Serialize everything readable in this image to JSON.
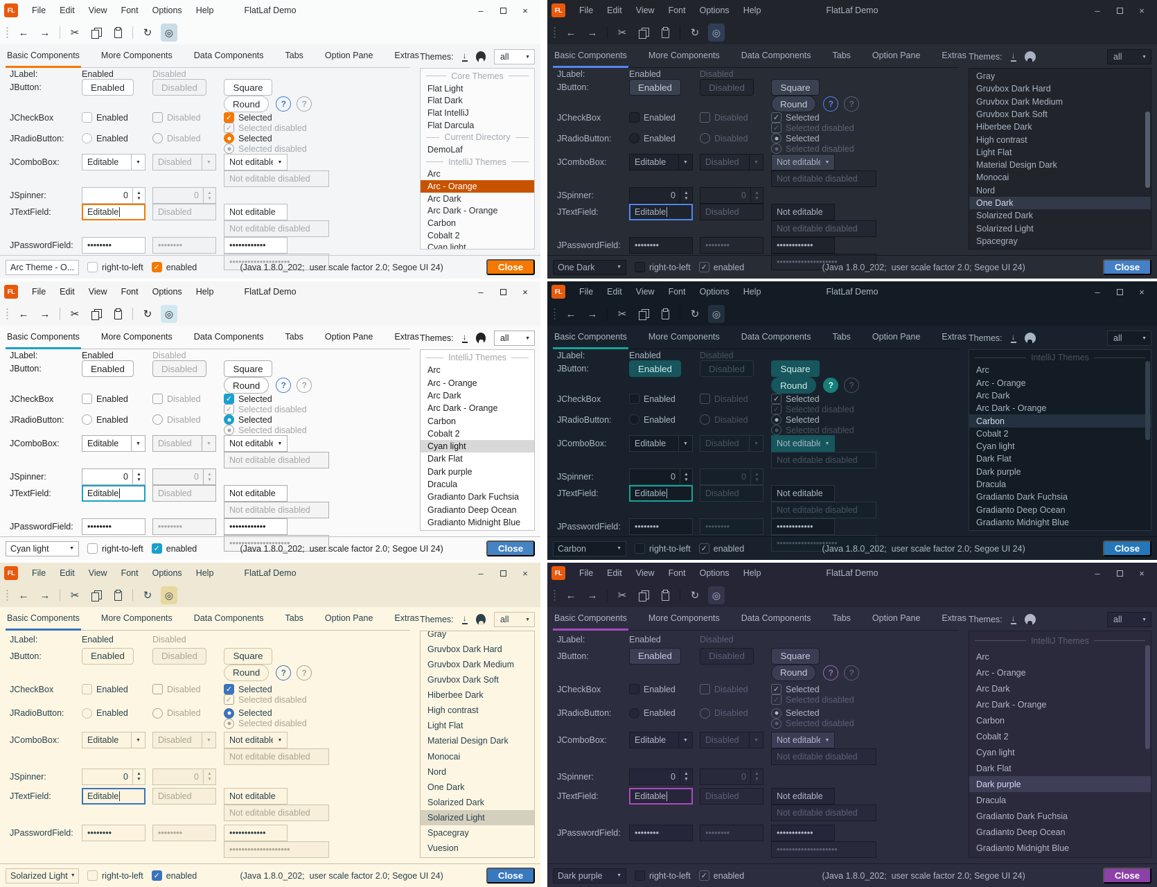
{
  "window": {
    "logo_text": "FL",
    "title": "FlatLaf Demo",
    "menus": [
      "File",
      "Edit",
      "View",
      "Font",
      "Options",
      "Help"
    ],
    "window_buttons": {
      "minimize": "–",
      "close": "×"
    },
    "toolbar_icons": {
      "back": "←",
      "forward": "→",
      "cut": "✂",
      "refresh": "↻",
      "eye": "◎"
    },
    "tabs": [
      "Basic Components",
      "More Components",
      "Data Components",
      "Tabs",
      "Option Pane",
      "Extras"
    ],
    "selected_tab": "Basic Components",
    "themes_label": "Themes:",
    "filter_value": "all",
    "rows": {
      "jlabel": {
        "label": "JLabel:",
        "enabled": "Enabled",
        "disabled": "Disabled"
      },
      "jbutton": {
        "label": "JButton:",
        "enabled": "Enabled",
        "disabled": "Disabled",
        "square": "Square",
        "round": "Round",
        "help": "?"
      },
      "jcheckbox": {
        "label": "JCheckBox",
        "enabled": "Enabled",
        "disabled": "Disabled",
        "selected": "Selected",
        "selected_disabled": "Selected disabled"
      },
      "jradiobutton": {
        "label": "JRadioButton:",
        "enabled": "Enabled",
        "disabled": "Disabled",
        "selected": "Selected",
        "selected_disabled": "Selected disabled"
      },
      "jcombobox": {
        "label": "JComboBox:",
        "editable": "Editable",
        "disabled": "Disabled",
        "not_editable": "Not editable",
        "not_editable_disabled": "Not editable disabled"
      },
      "jspinner": {
        "label": "JSpinner:",
        "value": "0",
        "value_disabled": "0"
      },
      "jtextfield": {
        "label": "JTextField:",
        "editable": "Editable",
        "disabled": "Disabled",
        "not_editable": "Not editable",
        "not_editable_disabled": "Not editable disabled"
      },
      "jpasswordfield": {
        "label": "JPasswordField:",
        "values": [
          "••••••••",
          "••••••••",
          "••••••••••••",
          "••••••••••••••••••••"
        ]
      }
    },
    "statusbar": {
      "rtl_label": "right-to-left",
      "enabled_label": "enabled",
      "status_text": "(Java 1.8.0_202;  user scale factor 2.0; Segoe UI 24)",
      "close_label": "Close"
    }
  },
  "panels": [
    {
      "name": "arc-orange",
      "mode": "light",
      "side": "left",
      "theme_combo_value": "Arc Theme - O...",
      "list": [
        {
          "type": "sep",
          "label": "Core Themes"
        },
        {
          "type": "item",
          "label": "Flat Light"
        },
        {
          "type": "item",
          "label": "Flat Dark"
        },
        {
          "type": "item",
          "label": "Flat IntelliJ"
        },
        {
          "type": "item",
          "label": "Flat Darcula"
        },
        {
          "type": "sep",
          "label": "Current Directory"
        },
        {
          "type": "item",
          "label": "DemoLaf"
        },
        {
          "type": "sep",
          "label": "IntelliJ Themes"
        },
        {
          "type": "item",
          "label": "Arc"
        },
        {
          "type": "item",
          "label": "Arc - Orange",
          "selected": true
        },
        {
          "type": "item",
          "label": "Arc Dark"
        },
        {
          "type": "item",
          "label": "Arc Dark - Orange"
        },
        {
          "type": "item",
          "label": "Carbon"
        },
        {
          "type": "item",
          "label": "Cobalt 2"
        },
        {
          "type": "item",
          "label": "Cyan light",
          "clip": "bottom"
        }
      ],
      "scrollbar": {
        "visible": false,
        "top_pct": 0,
        "height_pct": 0
      },
      "colors": {
        "bg": "#F4F5F6",
        "bar": "#FAFBFB",
        "fg": "#2B3034",
        "dim": "#A5AAB0",
        "border": "#C7CCD1",
        "field": "#FFFFFF",
        "fieldBorder": "#B9BFC6",
        "fieldDis": "#F1F2F3",
        "btn": "#FFFFFF",
        "btnBorder": "#B9BFC6",
        "btnFg": "#2B3034",
        "accent": "#F57900",
        "focus": "#F57900",
        "sel": "#C75300",
        "selFg": "#FFFFFF",
        "close": "#F57900",
        "closeFg": "#FFFFFF",
        "eyeHl": "#CBDCE6",
        "listBg": "#FBFBFB",
        "listBorder": "#C7CCD1",
        "scroll": "#C0C4C8",
        "helpBg": "transparent",
        "helpFg": "#3B7AD9",
        "helpBorder": "#3B7AD9"
      }
    },
    {
      "name": "one-dark",
      "mode": "dark",
      "side": "right",
      "theme_combo_value": "One Dark",
      "list": [
        {
          "type": "item",
          "label": "Gray"
        },
        {
          "type": "item",
          "label": "Gruvbox Dark Hard"
        },
        {
          "type": "item",
          "label": "Gruvbox Dark Medium"
        },
        {
          "type": "item",
          "label": "Gruvbox Dark Soft"
        },
        {
          "type": "item",
          "label": "Hiberbee Dark"
        },
        {
          "type": "item",
          "label": "High contrast"
        },
        {
          "type": "item",
          "label": "Light Flat"
        },
        {
          "type": "item",
          "label": "Material Design Dark"
        },
        {
          "type": "item",
          "label": "Monocai"
        },
        {
          "type": "item",
          "label": "Nord"
        },
        {
          "type": "item",
          "label": "One Dark",
          "selected": true
        },
        {
          "type": "item",
          "label": "Solarized Dark"
        },
        {
          "type": "item",
          "label": "Solarized Light"
        },
        {
          "type": "item",
          "label": "Spacegray"
        }
      ],
      "scrollbar": {
        "visible": true,
        "top_pct": 24,
        "height_pct": 42
      },
      "colors": {
        "bg": "#282C34",
        "bar": "#21252B",
        "fg": "#A9B2C2",
        "dim": "#5A6375",
        "border": "#15181E",
        "field": "#1F232C",
        "fieldBorder": "#13161C",
        "fieldDis": "#23272F",
        "btn": "#3A4150",
        "btnBorder": "#181B20",
        "btnFg": "#C5CCD8",
        "accent": "#5286F2",
        "focus": "#5286F2",
        "sel": "#323948",
        "selFg": "#D5DAE2",
        "close": "#4580C8",
        "closeFg": "#FFFFFF",
        "eyeHl": "#2F3D55",
        "listBg": "#21252B",
        "listBorder": "#15181E",
        "scroll": "#555E6F",
        "helpBg": "transparent",
        "helpFg": "#5286F2",
        "helpBorder": "#5286F2"
      }
    },
    {
      "name": "cyan-light",
      "mode": "light",
      "side": "left",
      "theme_combo_value": "Cyan light",
      "list": [
        {
          "type": "sep",
          "label": "IntelliJ Themes"
        },
        {
          "type": "item",
          "label": "Arc"
        },
        {
          "type": "item",
          "label": "Arc - Orange"
        },
        {
          "type": "item",
          "label": "Arc Dark"
        },
        {
          "type": "item",
          "label": "Arc Dark - Orange"
        },
        {
          "type": "item",
          "label": "Carbon"
        },
        {
          "type": "item",
          "label": "Cobalt 2"
        },
        {
          "type": "item",
          "label": "Cyan light",
          "selected": true
        },
        {
          "type": "item",
          "label": "Dark Flat"
        },
        {
          "type": "item",
          "label": "Dark purple"
        },
        {
          "type": "item",
          "label": "Dracula"
        },
        {
          "type": "item",
          "label": "Gradianto Dark Fuchsia"
        },
        {
          "type": "item",
          "label": "Gradianto Deep Ocean"
        },
        {
          "type": "item",
          "label": "Gradianto Midnight Blue"
        }
      ],
      "scrollbar": {
        "visible": false,
        "top_pct": 0,
        "height_pct": 0
      },
      "colors": {
        "bg": "#FAFAFA",
        "bar": "#F6F6F6",
        "fg": "#222222",
        "dim": "#A6A6A6",
        "border": "#C2C2C2",
        "field": "#FFFFFF",
        "fieldBorder": "#ADADAD",
        "fieldDis": "#F4F4F4",
        "btn": "#FFFFFF",
        "btnBorder": "#ADADAD",
        "btnFg": "#222222",
        "accent": "#1AA0CB",
        "focus": "#1AA0CB",
        "sel": "#D8D8D8",
        "selFg": "#111111",
        "close": "#4583C4",
        "closeFg": "#FFFFFF",
        "eyeHl": "#D2E7F0",
        "listBg": "#FFFFFF",
        "listBorder": "#C2C2C2",
        "scroll": "#C4C4C4",
        "helpBg": "transparent",
        "helpFg": "#3B7AD9",
        "helpBorder": "#3B7AD9"
      }
    },
    {
      "name": "carbon",
      "mode": "dark",
      "side": "right",
      "theme_combo_value": "Carbon",
      "list": [
        {
          "type": "sep",
          "label": "IntelliJ Themes"
        },
        {
          "type": "item",
          "label": "Arc"
        },
        {
          "type": "item",
          "label": "Arc - Orange"
        },
        {
          "type": "item",
          "label": "Arc Dark"
        },
        {
          "type": "item",
          "label": "Arc Dark - Orange"
        },
        {
          "type": "item",
          "label": "Carbon",
          "selected": true
        },
        {
          "type": "item",
          "label": "Cobalt 2"
        },
        {
          "type": "item",
          "label": "Cyan light"
        },
        {
          "type": "item",
          "label": "Dark Flat"
        },
        {
          "type": "item",
          "label": "Dark purple"
        },
        {
          "type": "item",
          "label": "Dracula"
        },
        {
          "type": "item",
          "label": "Gradianto Dark Fuchsia"
        },
        {
          "type": "item",
          "label": "Gradianto Deep Ocean"
        },
        {
          "type": "item",
          "label": "Gradianto Midnight Blue"
        }
      ],
      "scrollbar": {
        "visible": true,
        "top_pct": 6,
        "height_pct": 44
      },
      "colors": {
        "bg": "#19222C",
        "bar": "#131B24",
        "fg": "#A7B6C2",
        "dim": "#48535F",
        "border": "#0E141B",
        "field": "#131B24",
        "fieldBorder": "#2A3540",
        "fieldDis": "#16202A",
        "btn": "#16565C",
        "btnBorder": "#16565C",
        "btnFg": "#CFE8E8",
        "accent": "#17A398",
        "focus": "#17A398",
        "sel": "#243140",
        "selFg": "#CFDBE4",
        "close": "#2577B8",
        "closeFg": "#FFFFFF",
        "eyeHl": "#21303C",
        "listBg": "#131B24",
        "listBorder": "#2A3540",
        "scroll": "#33404E",
        "helpBg": "#177F7A",
        "helpFg": "#E8F4F2",
        "helpBorder": "#177F7A"
      }
    },
    {
      "name": "solarized-light",
      "mode": "light",
      "side": "left",
      "theme_combo_value": "Solarized Light",
      "list": [
        {
          "type": "item",
          "label": "Gray",
          "clip": "top"
        },
        {
          "type": "item",
          "label": "Gruvbox Dark Hard"
        },
        {
          "type": "item",
          "label": "Gruvbox Dark Medium"
        },
        {
          "type": "item",
          "label": "Gruvbox Dark Soft"
        },
        {
          "type": "item",
          "label": "Hiberbee Dark"
        },
        {
          "type": "item",
          "label": "High contrast"
        },
        {
          "type": "item",
          "label": "Light Flat"
        },
        {
          "type": "item",
          "label": "Material Design Dark"
        },
        {
          "type": "item",
          "label": "Monocai"
        },
        {
          "type": "item",
          "label": "Nord"
        },
        {
          "type": "item",
          "label": "One Dark"
        },
        {
          "type": "item",
          "label": "Solarized Dark"
        },
        {
          "type": "item",
          "label": "Solarized Light",
          "selected": true
        },
        {
          "type": "item",
          "label": "Spacegray"
        },
        {
          "type": "item",
          "label": "Vuesion"
        }
      ],
      "scrollbar": {
        "visible": false,
        "top_pct": 0,
        "height_pct": 0
      },
      "colors": {
        "bg": "#FDF6E3",
        "bar": "#EEE8D5",
        "fg": "#29424D",
        "dim": "#A9A592",
        "border": "#C9C2A8",
        "field": "#FCF4DE",
        "fieldBorder": "#CCC5AB",
        "fieldDis": "#F7EFDA",
        "btn": "#FCF4DE",
        "btnBorder": "#CCC5AB",
        "btnFg": "#29424D",
        "accent": "#3B73BC",
        "focus": "#3B73BC",
        "sel": "#D5D0BE",
        "selFg": "#29424D",
        "close": "#3878BF",
        "closeFg": "#FFFFFF",
        "eyeHl": "#E7D8A2",
        "listBg": "#FDF6E3",
        "listBorder": "#C9C2A8",
        "scroll": "#CFC9B0",
        "helpBg": "transparent",
        "helpFg": "#3B73BC",
        "helpBorder": "#3B73BC"
      }
    },
    {
      "name": "dark-purple",
      "mode": "dark",
      "side": "right",
      "theme_combo_value": "Dark purple",
      "list": [
        {
          "type": "sep",
          "label": "IntelliJ Themes"
        },
        {
          "type": "item",
          "label": "Arc"
        },
        {
          "type": "item",
          "label": "Arc - Orange"
        },
        {
          "type": "item",
          "label": "Arc Dark"
        },
        {
          "type": "item",
          "label": "Arc Dark - Orange"
        },
        {
          "type": "item",
          "label": "Carbon"
        },
        {
          "type": "item",
          "label": "Cobalt 2"
        },
        {
          "type": "item",
          "label": "Cyan light"
        },
        {
          "type": "item",
          "label": "Dark Flat"
        },
        {
          "type": "item",
          "label": "Dark purple",
          "selected": true
        },
        {
          "type": "item",
          "label": "Dracula"
        },
        {
          "type": "item",
          "label": "Gradianto Dark Fuchsia"
        },
        {
          "type": "item",
          "label": "Gradianto Deep Ocean"
        },
        {
          "type": "item",
          "label": "Gradianto Midnight Blue"
        }
      ],
      "scrollbar": {
        "visible": true,
        "top_pct": 6,
        "height_pct": 46
      },
      "colors": {
        "bg": "#2D2D40",
        "bar": "#252536",
        "fg": "#B4B4CA",
        "dim": "#5E5E78",
        "border": "#1B1B29",
        "field": "#26263A",
        "fieldBorder": "#1A1A28",
        "fieldDis": "#29293C",
        "btn": "#3C3C55",
        "btnBorder": "#1D1D2C",
        "btnFg": "#C8C8DC",
        "accent": "#A94BBF",
        "focus": "#A94BBF",
        "sel": "#3E3E58",
        "selFg": "#D8D8E8",
        "close": "#8D41A8",
        "closeFg": "#FFFFFF",
        "eyeHl": "#35354C",
        "listBg": "#2A2A3C",
        "listBorder": "#1D1D2C",
        "scroll": "#4A4A66",
        "helpBg": "transparent",
        "helpFg": "#9A6FAE",
        "helpBorder": "#9A6FAE"
      }
    }
  ]
}
